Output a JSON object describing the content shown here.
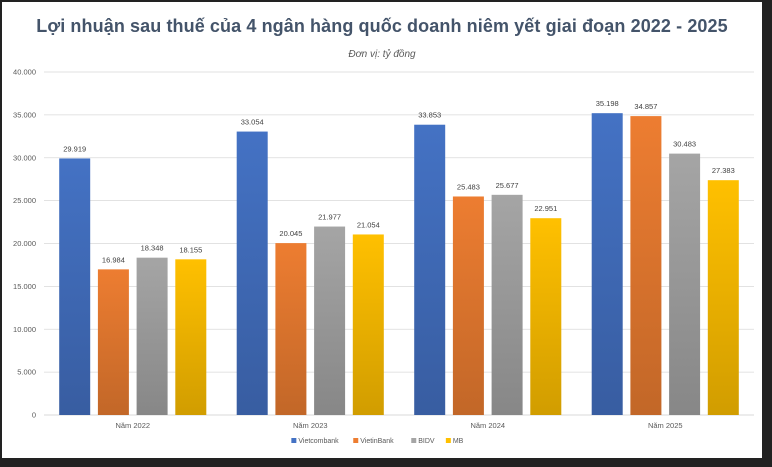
{
  "chart_data": {
    "type": "bar",
    "title": "Lợi nhuận sau thuế của 4 ngân hàng quốc doanh niêm yết giai đoạn 2022 - 2025",
    "subtitle": "Đơn vị: tỷ đồng",
    "xlabel": "",
    "ylabel": "",
    "ylim": [
      0,
      40000
    ],
    "yticks": [
      0,
      5000,
      10000,
      15000,
      20000,
      25000,
      30000,
      35000,
      40000
    ],
    "ytick_labels": [
      "0",
      "5.000",
      "10.000",
      "15.000",
      "20.000",
      "25.000",
      "30.000",
      "35.000",
      "40.000"
    ],
    "categories": [
      "Năm 2022",
      "Năm 2023",
      "Năm 2024",
      "Năm 2025"
    ],
    "series": [
      {
        "name": "Vietcombank",
        "color": "#4472c4",
        "values": [
          29919,
          33054,
          33853,
          35198
        ],
        "labels": [
          "29.919",
          "33.054",
          "33.853",
          "35.198"
        ]
      },
      {
        "name": "VietinBank",
        "color": "#ed7d31",
        "values": [
          16984,
          20045,
          25483,
          34857
        ],
        "labels": [
          "16.984",
          "20.045",
          "25.483",
          "34.857"
        ]
      },
      {
        "name": "BIDV",
        "color": "#a5a5a5",
        "values": [
          18348,
          21977,
          25677,
          30483
        ],
        "labels": [
          "18.348",
          "21.977",
          "25.677",
          "30.483"
        ]
      },
      {
        "name": "MB",
        "color": "#ffc000",
        "values": [
          18155,
          21054,
          22951,
          27383
        ],
        "labels": [
          "18.155",
          "21.054",
          "22.951",
          "27.383"
        ]
      }
    ],
    "legend_position": "bottom",
    "grid": true
  }
}
